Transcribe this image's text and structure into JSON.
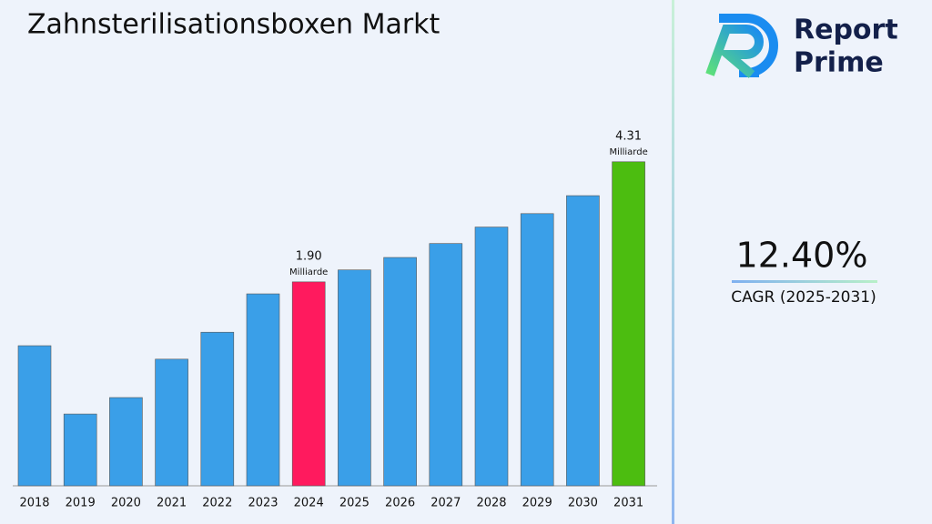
{
  "chart_data": {
    "type": "bar",
    "title": "Zahnsterilisationsboxen Markt",
    "categories": [
      "2018",
      "2019",
      "2020",
      "2021",
      "2022",
      "2023",
      "2024",
      "2025",
      "2026",
      "2027",
      "2028",
      "2029",
      "2030",
      "2031"
    ],
    "values": [
      0.62,
      -0.75,
      -0.42,
      0.35,
      0.89,
      1.66,
      1.9,
      2.14,
      2.39,
      2.67,
      3.0,
      3.27,
      3.63,
      4.31
    ],
    "value_labels": [
      null,
      null,
      null,
      null,
      null,
      null,
      "1.90",
      null,
      null,
      null,
      null,
      null,
      null,
      "4.31"
    ],
    "unit_label": "Milliarde",
    "colors": [
      "#3a9fe8",
      "#3a9fe8",
      "#3a9fe8",
      "#3a9fe8",
      "#3a9fe8",
      "#3a9fe8",
      "#ff1a5e",
      "#3a9fe8",
      "#3a9fe8",
      "#3a9fe8",
      "#3a9fe8",
      "#3a9fe8",
      "#3a9fe8",
      "#4cbd10"
    ],
    "ylim": [
      -2.19,
      5.0
    ]
  },
  "sidebar": {
    "cagr_value": "12.40%",
    "cagr_label": "CAGR (2025-2031)"
  },
  "logo": {
    "line1": "Report",
    "line2": "Prime"
  }
}
